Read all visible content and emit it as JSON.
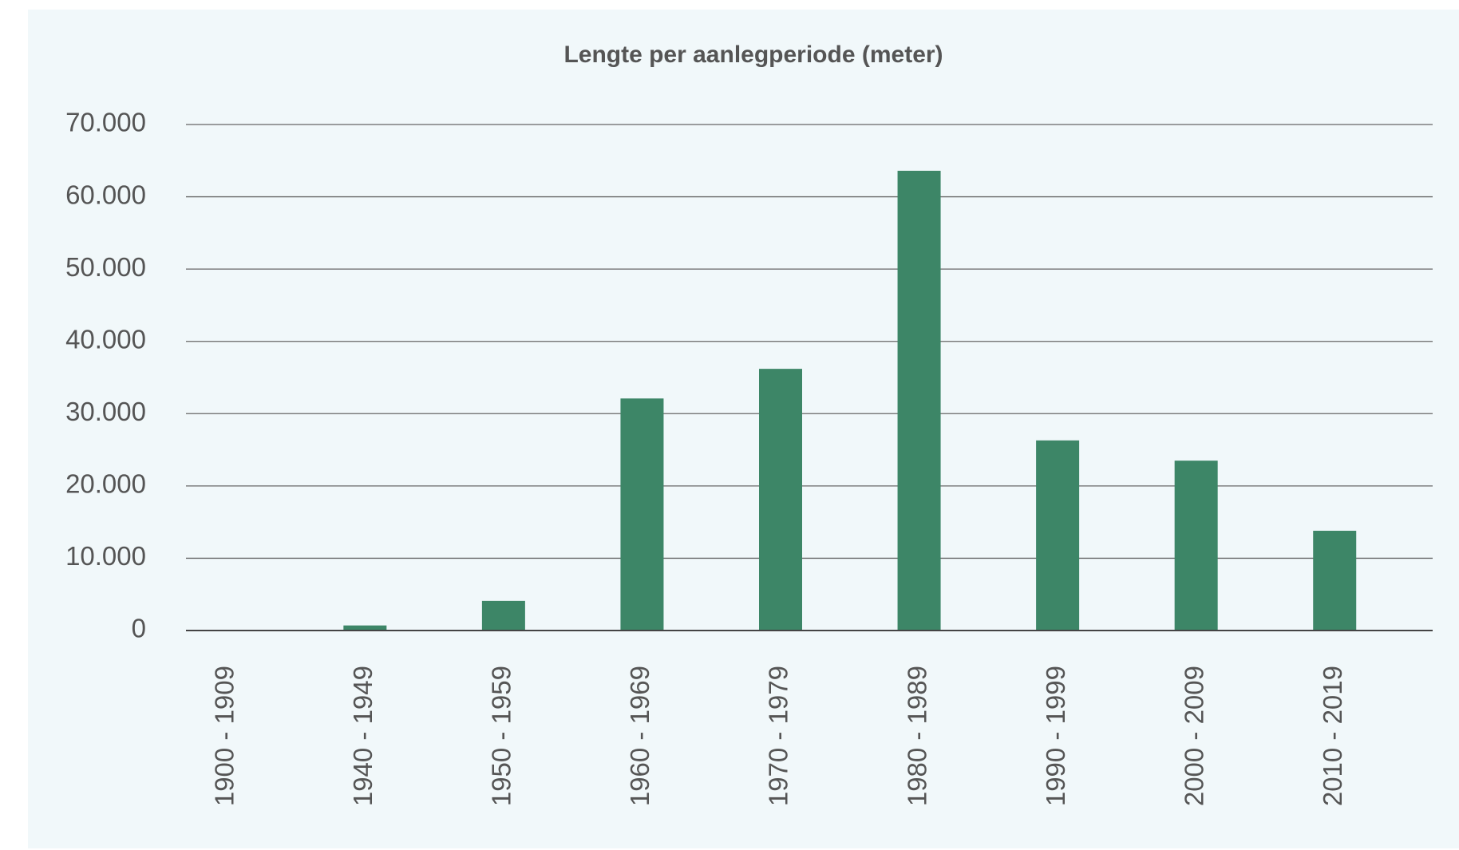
{
  "chart_data": {
    "type": "bar",
    "title": "Lengte per aanlegperiode (meter)",
    "categories": [
      "1900 - 1909",
      "1940 - 1949",
      "1950 - 1959",
      "1960 - 1969",
      "1970 - 1979",
      "1980 - 1989",
      "1990 - 1999",
      "2000 - 2009",
      "2010 - 2019"
    ],
    "values": [
      100,
      700,
      4100,
      32100,
      36200,
      63600,
      26300,
      23500,
      13800
    ],
    "color": "#3d8667",
    "ylim": [
      0,
      70000
    ],
    "yticks": [
      0,
      {
        "value": 10000,
        "label": "10.000"
      },
      {
        "value": 20000,
        "label": "20.000"
      },
      {
        "value": 30000,
        "label": "30.000"
      },
      {
        "value": 40000,
        "label": "40.000"
      },
      {
        "value": 50000,
        "label": "50.000"
      },
      {
        "value": 60000,
        "label": "60.000"
      },
      {
        "value": 70000,
        "label": "70.000"
      }
    ],
    "grid": true
  }
}
